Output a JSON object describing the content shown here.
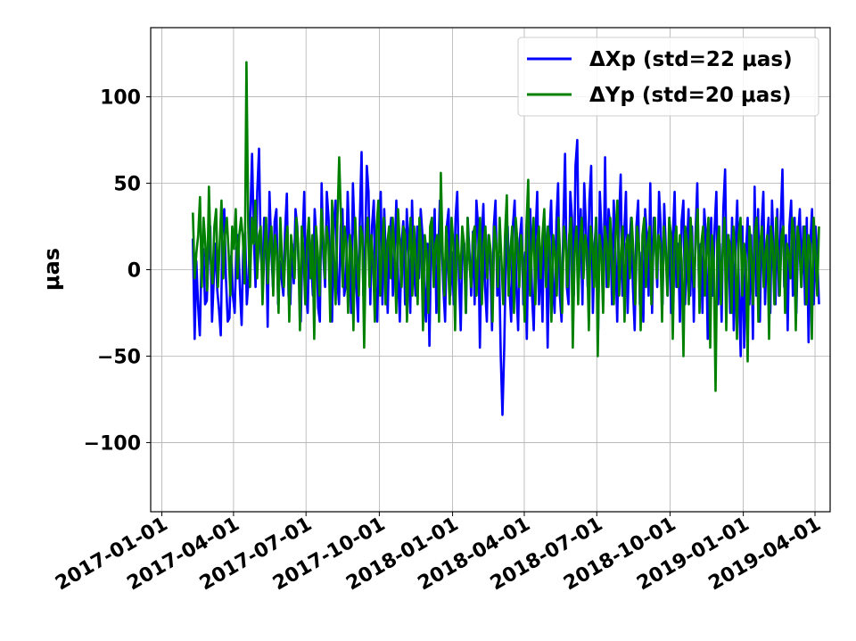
{
  "chart_data": {
    "type": "line",
    "title": "",
    "xlabel": "",
    "ylabel": "μas",
    "xlim": [
      "2016-12-18",
      "2019-04-20"
    ],
    "ylim": [
      -140,
      140
    ],
    "grid": true,
    "legend_position": "top-right",
    "x_ticks": [
      "2017-01-01",
      "2017-04-01",
      "2017-07-01",
      "2017-10-01",
      "2018-01-01",
      "2018-04-01",
      "2018-07-01",
      "2018-10-01",
      "2019-01-01",
      "2019-04-01"
    ],
    "y_ticks": [
      -100,
      -50,
      0,
      50,
      100
    ],
    "y_tick_labels": [
      "−100",
      "−50",
      "0",
      "50",
      "100"
    ],
    "x_start": "2017-02-09",
    "x_end": "2019-04-06",
    "series": [
      {
        "name": "ΔXp (std=22 μas)",
        "color": "#0000ff",
        "sample_every": "2 days",
        "values": [
          18,
          -40,
          5,
          -21,
          -38,
          8,
          12,
          -20,
          -18,
          10,
          25,
          -30,
          -5,
          15,
          -12,
          -23,
          -38,
          22,
          35,
          -5,
          -30,
          -28,
          8,
          -15,
          -25,
          12,
          20,
          -10,
          -32,
          15,
          22,
          -20,
          -5,
          30,
          67,
          20,
          -10,
          45,
          70,
          10,
          -5,
          30,
          25,
          -33,
          45,
          15,
          -10,
          28,
          35,
          -20,
          5,
          -5,
          -15,
          22,
          44,
          -15,
          -20,
          15,
          -8,
          35,
          25,
          -5,
          -30,
          15,
          45,
          -10,
          -25,
          20,
          5,
          -15,
          35,
          18,
          -22,
          -30,
          50,
          8,
          -10,
          45,
          30,
          -12,
          -30,
          25,
          40,
          -5,
          -20,
          25,
          35,
          -15,
          -8,
          45,
          15,
          -25,
          50,
          20,
          -10,
          -30,
          30,
          68,
          -15,
          10,
          60,
          45,
          -20,
          25,
          40,
          -10,
          -30,
          20,
          45,
          -20,
          35,
          5,
          -25,
          18,
          30,
          -15,
          10,
          40,
          -5,
          -30,
          15,
          28,
          -20,
          35,
          10,
          -25,
          40,
          5,
          -15,
          25,
          -5,
          35,
          20,
          -10,
          -30,
          15,
          -44,
          20,
          10,
          35,
          -25,
          5,
          40,
          18,
          -10,
          -30,
          25,
          35,
          -15,
          10,
          -20,
          30,
          45,
          -5,
          -35,
          20,
          15,
          -25,
          30,
          10,
          -15,
          22,
          -20,
          40,
          25,
          -45,
          15,
          38,
          -10,
          -30,
          20,
          5,
          -35,
          25,
          40,
          -15,
          8,
          -50,
          -84,
          -45,
          10,
          25,
          -10,
          -30,
          25,
          40,
          -10,
          -35,
          18,
          30,
          -20,
          10,
          -40,
          25,
          35,
          -15,
          -35,
          20,
          45,
          -20,
          10,
          -30,
          30,
          15,
          -45,
          20,
          40,
          -10,
          -25,
          28,
          50,
          -15,
          -30,
          25,
          67,
          -10,
          -20,
          45,
          30,
          -15,
          60,
          75,
          -5,
          35,
          -20,
          50,
          25,
          -10,
          40,
          60,
          -25,
          15,
          30,
          -35,
          45,
          20,
          -15,
          65,
          -10,
          35,
          25,
          -20,
          40,
          10,
          -30,
          28,
          55,
          -15,
          20,
          45,
          -25,
          15,
          30,
          -10,
          -35,
          25,
          40,
          -20,
          10,
          -30,
          35,
          20,
          -15,
          50,
          -25,
          30,
          15,
          -10,
          45,
          25,
          -20,
          38,
          10,
          -15,
          30,
          -25,
          20,
          45,
          -10,
          15,
          -30,
          28,
          40,
          -20,
          10,
          35,
          -15,
          25,
          -30,
          20,
          50,
          -10,
          15,
          -25,
          35,
          20,
          -40,
          10,
          30,
          -15,
          25,
          45,
          -20,
          15,
          -30,
          35,
          58,
          -10,
          20,
          -25,
          30,
          -35,
          15,
          40,
          -15,
          -50,
          25,
          -45,
          10,
          30,
          -20,
          20,
          -40,
          48,
          -15,
          35,
          -30,
          25,
          45,
          -20,
          15,
          30,
          -25,
          40,
          10,
          -20,
          35,
          -15,
          28,
          58,
          -10,
          20,
          -35,
          25,
          40,
          -15,
          30,
          -25,
          20,
          35,
          -10,
          25,
          -20,
          30,
          -42,
          15,
          35,
          -20,
          25,
          10,
          -20
        ]
      },
      {
        "name": "ΔYp (std=20 μas)",
        "color": "#008000",
        "sample_every": "2 days",
        "values": [
          33,
          -5,
          10,
          20,
          42,
          -10,
          30,
          15,
          -12,
          48,
          5,
          -8,
          25,
          35,
          -10,
          15,
          40,
          -5,
          20,
          30,
          10,
          -15,
          25,
          12,
          35,
          -5,
          20,
          30,
          18,
          -8,
          120,
          25,
          -10,
          30,
          15,
          40,
          -5,
          20,
          25,
          -20,
          10,
          30,
          -8,
          15,
          25,
          -15,
          20,
          10,
          -25,
          30,
          5,
          -10,
          15,
          25,
          -30,
          20,
          10,
          -5,
          30,
          15,
          -35,
          25,
          10,
          -20,
          15,
          30,
          -5,
          20,
          -40,
          25,
          10,
          -15,
          35,
          20,
          -5,
          25,
          15,
          -30,
          40,
          10,
          -20,
          28,
          65,
          30,
          -10,
          25,
          15,
          -25,
          20,
          10,
          -35,
          30,
          5,
          -15,
          25,
          20,
          -45,
          15,
          30,
          -10,
          20,
          5,
          -30,
          25,
          40,
          -15,
          10,
          30,
          -20,
          15,
          25,
          -5,
          30,
          10,
          -25,
          35,
          15,
          -10,
          25,
          20,
          -30,
          10,
          30,
          -15,
          25,
          5,
          -20,
          30,
          15,
          -35,
          20,
          10,
          -25,
          25,
          30,
          -10,
          15,
          20,
          -30,
          56,
          10,
          -15,
          25,
          5,
          -20,
          30,
          15,
          -35,
          20,
          10,
          -5,
          25,
          15,
          -25,
          30,
          5,
          -10,
          20,
          25,
          -15,
          10,
          30,
          -20,
          15,
          25,
          -5,
          20,
          10,
          -30,
          25,
          15,
          -10,
          30,
          5,
          -20,
          20,
          43,
          -15,
          10,
          25,
          -25,
          30,
          15,
          -10,
          20,
          5,
          -30,
          25,
          52,
          -15,
          10,
          30,
          -20,
          15,
          25,
          -5,
          20,
          35,
          -10,
          25,
          15,
          -30,
          20,
          10,
          -15,
          30,
          5,
          -25,
          25,
          15,
          -10,
          20,
          30,
          -45,
          10,
          25,
          -20,
          15,
          30,
          -5,
          20,
          10,
          -35,
          25,
          15,
          -10,
          30,
          -50,
          20,
          10,
          -25,
          25,
          15,
          -10,
          30,
          5,
          -20,
          20,
          40,
          -15,
          10,
          25,
          -30,
          15,
          20,
          -5,
          30,
          10,
          -20,
          25,
          15,
          -35,
          20,
          30,
          -10,
          15,
          25,
          -20,
          10,
          30,
          -5,
          20,
          15,
          -30,
          25,
          10,
          -15,
          30,
          20,
          -40,
          15,
          25,
          -10,
          20,
          5,
          -50,
          25,
          15,
          -20,
          30,
          10,
          -10,
          20,
          35,
          -25,
          15,
          25,
          -15,
          10,
          30,
          -45,
          20,
          5,
          -70,
          15,
          25,
          -20,
          10,
          30,
          -35,
          20,
          15,
          -25,
          25,
          10,
          -40,
          20,
          30,
          -15,
          15,
          5,
          -53,
          25,
          10,
          -20,
          20,
          30,
          -30,
          15,
          25,
          -10,
          10,
          20,
          -40,
          25,
          15,
          -20,
          30,
          10,
          -15,
          20,
          25,
          -25,
          15,
          10,
          -5,
          30,
          20,
          -35,
          25,
          15,
          -10,
          10,
          25,
          -20,
          20,
          15,
          -40,
          30,
          10,
          -15,
          25
        ]
      }
    ]
  }
}
